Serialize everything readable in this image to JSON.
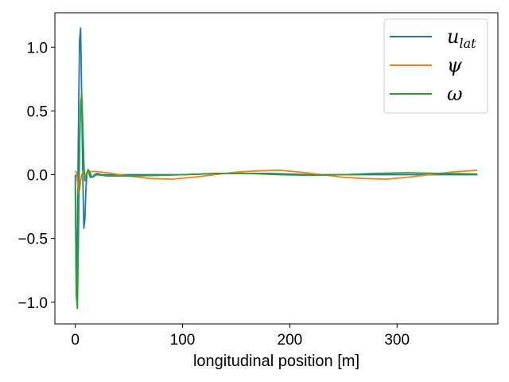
{
  "chart_data": {
    "type": "line",
    "title": "",
    "xlabel": "longitudinal position [m]",
    "ylabel": "",
    "xlim": [
      -19,
      394
    ],
    "ylim": [
      -1.17,
      1.27
    ],
    "xticks": [
      0,
      100,
      200,
      300
    ],
    "yticks": [
      -1.0,
      -0.5,
      0.0,
      0.5,
      1.0
    ],
    "xtick_labels": [
      "0",
      "100",
      "200",
      "300"
    ],
    "ytick_labels": [
      "−1.0",
      "−0.5",
      "0.0",
      "0.5",
      "1.0"
    ],
    "grid": false,
    "legend_position": "top-right",
    "series": [
      {
        "name": "u_lat",
        "label_main": "u",
        "label_sub": "lat",
        "color": "#1f77b4",
        "x": [
          0,
          1,
          2,
          3,
          4,
          5,
          6,
          7,
          8,
          9,
          10,
          11,
          12,
          14,
          16,
          18,
          20,
          25,
          30,
          40,
          60,
          100,
          140,
          180,
          220,
          260,
          300,
          340,
          375
        ],
        "y": [
          0.0,
          -0.95,
          -0.4,
          0.4,
          1.05,
          1.15,
          0.6,
          0.0,
          -0.42,
          -0.35,
          -0.1,
          0.02,
          0.03,
          -0.02,
          -0.02,
          0.0,
          0.01,
          0.0,
          0.0,
          0.0,
          0.0,
          0.0,
          0.01,
          0.01,
          0.0,
          0.0,
          0.0,
          0.0,
          0.0
        ]
      },
      {
        "name": "ψ",
        "label_main": "ψ",
        "label_sub": "",
        "color": "#ff7f0e",
        "x": [
          0,
          1,
          2,
          3,
          4,
          5,
          6,
          7,
          8,
          10,
          12,
          15,
          20,
          30,
          50,
          70,
          90,
          110,
          130,
          150,
          170,
          190,
          210,
          230,
          250,
          270,
          290,
          310,
          330,
          350,
          375
        ],
        "y": [
          0.03,
          0.02,
          -0.05,
          -0.15,
          -0.12,
          -0.05,
          0.0,
          0.02,
          0.01,
          0.0,
          0.02,
          0.025,
          0.025,
          0.015,
          -0.01,
          -0.03,
          -0.035,
          -0.02,
          0.0,
          0.02,
          0.03,
          0.035,
          0.02,
          0.0,
          -0.02,
          -0.03,
          -0.035,
          -0.02,
          0.0,
          0.02,
          0.035
        ]
      },
      {
        "name": "ω",
        "label_main": "ω",
        "label_sub": "",
        "color": "#2ca02c",
        "x": [
          0,
          1,
          2,
          3,
          4,
          5,
          6,
          7,
          8,
          9,
          10,
          11,
          12,
          13,
          14,
          15,
          16,
          18,
          20,
          25,
          30,
          50,
          80,
          100,
          130,
          160,
          190,
          220,
          250,
          280,
          310,
          340,
          375
        ],
        "y": [
          -0.1,
          -0.95,
          -1.05,
          -0.5,
          0.2,
          0.55,
          0.64,
          0.4,
          0.1,
          -0.05,
          -0.02,
          0.02,
          0.04,
          0.03,
          0.01,
          -0.01,
          -0.02,
          -0.01,
          0.0,
          -0.005,
          -0.01,
          -0.01,
          -0.005,
          0.0,
          0.01,
          0.01,
          0.0,
          -0.005,
          0.0,
          0.01,
          0.015,
          0.01,
          0.005
        ]
      }
    ]
  }
}
